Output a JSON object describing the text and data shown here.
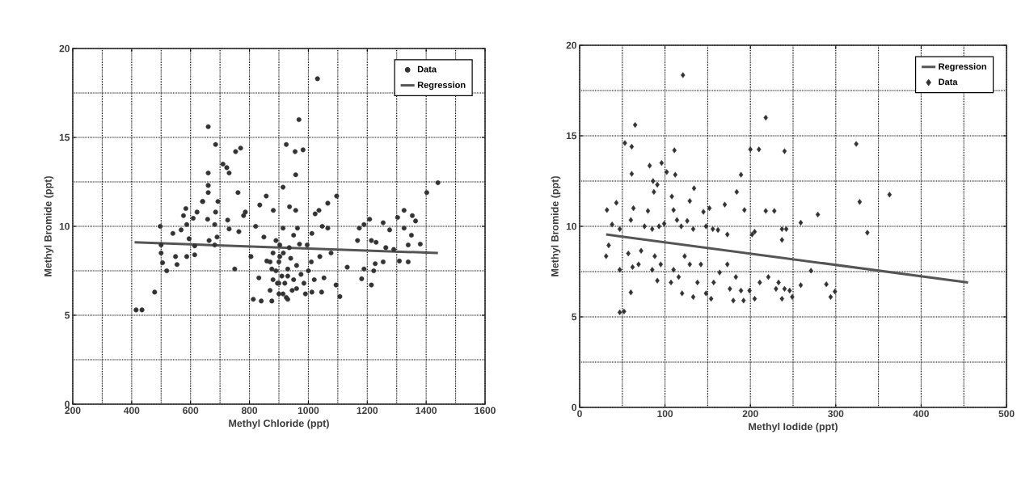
{
  "chart_data": [
    {
      "type": "scatter",
      "xlabel": "Methyl Chloride (ppt)",
      "ylabel": "Methyl Bromide (ppt)",
      "xlim": [
        200,
        1600
      ],
      "ylim": [
        0,
        20
      ],
      "xticks": [
        200,
        400,
        600,
        800,
        1000,
        1200,
        1400,
        1600
      ],
      "yticks": [
        0,
        5,
        10,
        15,
        20
      ],
      "grid": true,
      "legend": "top right",
      "series": [
        {
          "name": "Data",
          "marker": "circle",
          "color": "#333333",
          "x": [
            660,
            685,
            753,
            770,
            710,
            723,
            731,
            660,
            660,
            660,
            761,
            857,
            641,
            693,
            835,
            1031,
            968,
            925,
            955,
            982,
            957,
            914,
            1440,
            1402,
            1096,
            1066,
            1036,
            1023,
            936,
            957,
            1325,
            1353,
            1364,
            1303,
            1254,
            1208,
            1189,
            1173,
            1276,
            1325,
            1350,
            1380,
            1339,
            1290,
            1263,
            1230,
            1214,
            1167,
            1227,
            1222,
            1254,
            1309,
            1339,
            1189,
            1181,
            1214,
            1132,
            1047,
            1066,
            1012,
            963,
            996,
            1039,
            1077,
            1053,
            1094,
            1107,
            1012,
            990,
            1045,
            930,
            415,
            435,
            478,
            497,
            500,
            500,
            505,
            519,
            549,
            554,
            540,
            568,
            587,
            576,
            584,
            595,
            614,
            614,
            587,
            609,
            622,
            641,
            658,
            685,
            682,
            663,
            682,
            690,
            726,
            731,
            764,
            750,
            786,
            780,
            805,
            821,
            849,
            881,
            813,
            840,
            876,
            832,
            859,
            876,
            895,
            914,
            914,
            903,
            903,
            880,
            890,
            900,
            910,
            920,
            930,
            940,
            950,
            960,
            870,
            900,
            925,
            945,
            880,
            935,
            960,
            975,
            985,
            1000,
            1010,
            1020,
            970,
            950,
            890,
            870,
            900,
            915,
            930
          ],
          "values": [
            12.3,
            14.6,
            14.2,
            14.4,
            13.5,
            13.3,
            13.0,
            13.0,
            11.9,
            15.6,
            11.9,
            11.7,
            11.4,
            11.4,
            11.2,
            18.3,
            16.0,
            14.6,
            14.2,
            14.3,
            12.9,
            12.2,
            12.45,
            11.9,
            11.7,
            11.3,
            10.9,
            10.7,
            11.1,
            10.9,
            10.9,
            10.6,
            10.3,
            10.5,
            10.2,
            10.4,
            10.1,
            9.9,
            9.8,
            9.9,
            9.5,
            9.0,
            8.95,
            8.7,
            8.8,
            9.1,
            9.2,
            9.2,
            7.9,
            7.5,
            8.0,
            8.05,
            8.0,
            7.6,
            7.05,
            6.7,
            7.7,
            10.0,
            9.9,
            9.6,
            9.9,
            8.95,
            8.3,
            8.5,
            7.1,
            6.7,
            6.05,
            6.3,
            6.2,
            6.3,
            5.9,
            5.3,
            5.3,
            6.3,
            10.0,
            8.95,
            8.5,
            7.95,
            7.5,
            8.3,
            7.85,
            9.6,
            9.8,
            10.1,
            10.6,
            11.0,
            9.3,
            8.9,
            8.4,
            8.3,
            10.45,
            10.8,
            11.4,
            10.4,
            10.8,
            10.1,
            9.2,
            8.95,
            9.4,
            10.35,
            9.85,
            9.7,
            7.6,
            10.8,
            10.6,
            8.3,
            10.0,
            9.4,
            10.9,
            5.9,
            5.8,
            5.8,
            7.1,
            8.05,
            7.6,
            6.8,
            6.2,
            9.9,
            8.95,
            8.3,
            7.0,
            7.5,
            8.0,
            7.2,
            6.8,
            7.6,
            8.2,
            7.0,
            6.5,
            6.4,
            6.2,
            6.0,
            6.4,
            8.5,
            8.8,
            7.8,
            7.3,
            6.8,
            7.5,
            8.0,
            7.0,
            9.0,
            9.5,
            9.2,
            8.0,
            6.8,
            8.5,
            7.2
          ]
        },
        {
          "name": "Regression",
          "type": "line",
          "marker": "none",
          "color": "#555555",
          "x": [
            410,
            1440
          ],
          "values": [
            9.1,
            8.5
          ]
        }
      ]
    },
    {
      "type": "scatter",
      "xlabel": "Methyl Iodide (ppt)",
      "ylabel": "Methyl Bromide (ppt)",
      "xlim": [
        0,
        500
      ],
      "ylim": [
        0,
        20
      ],
      "xticks": [
        0,
        100,
        200,
        300,
        400,
        500
      ],
      "yticks": [
        0,
        5,
        10,
        15,
        20
      ],
      "grid": true,
      "legend": "top right",
      "series": [
        {
          "name": "Regression",
          "type": "line",
          "marker": "none",
          "color": "#555555",
          "x": [
            31,
            455
          ],
          "values": [
            9.55,
            6.9
          ]
        },
        {
          "name": "Data",
          "marker": "diamond",
          "color": "#333333",
          "x": [
            121,
            65,
            218,
            53,
            61,
            111,
            200,
            210,
            240,
            82,
            96,
            102,
            112,
            61,
            189,
            86,
            91,
            87,
            134,
            184,
            108,
            129,
            170,
            32,
            43,
            63,
            80,
            110,
            145,
            152,
            193,
            218,
            228,
            38,
            47,
            60,
            76,
            85,
            93,
            99,
            114,
            119,
            126,
            133,
            148,
            156,
            162,
            173,
            202,
            205,
            237,
            242,
            237,
            31,
            34,
            47,
            57,
            62,
            69,
            72,
            88,
            85,
            91,
            95,
            110,
            107,
            116,
            123,
            129,
            120,
            133,
            138,
            142,
            148,
            154,
            157,
            164,
            173,
            176,
            183,
            189,
            180,
            192,
            205,
            199,
            211,
            221,
            230,
            237,
            246,
            60,
            47,
            52,
            324,
            363,
            328,
            279,
            259,
            337,
            271,
            259,
            249,
            289,
            299,
            294,
            233,
            240
          ],
          "values": [
            18.35,
            15.6,
            16.0,
            14.6,
            14.4,
            14.2,
            14.25,
            14.25,
            14.15,
            13.35,
            13.5,
            13.0,
            12.85,
            12.9,
            12.85,
            12.5,
            12.3,
            11.9,
            12.1,
            11.9,
            11.65,
            11.4,
            11.2,
            10.9,
            11.3,
            11.0,
            10.85,
            10.9,
            10.8,
            11.0,
            10.9,
            10.85,
            10.85,
            10.1,
            9.85,
            10.35,
            10.0,
            9.85,
            10.0,
            10.15,
            10.35,
            10.0,
            10.3,
            9.85,
            10.0,
            9.85,
            9.8,
            9.55,
            9.55,
            9.7,
            9.85,
            9.85,
            9.25,
            8.35,
            8.95,
            7.6,
            8.5,
            7.75,
            7.9,
            8.65,
            8.35,
            7.6,
            7.0,
            7.9,
            7.6,
            6.9,
            7.2,
            8.35,
            7.9,
            6.3,
            6.1,
            6.9,
            7.9,
            6.3,
            6.0,
            6.9,
            7.45,
            7.9,
            6.55,
            7.2,
            6.45,
            5.9,
            5.9,
            6.0,
            6.45,
            6.9,
            7.2,
            6.55,
            6.0,
            6.45,
            6.35,
            5.25,
            5.3,
            14.55,
            11.75,
            11.35,
            10.65,
            10.2,
            9.65,
            7.55,
            6.75,
            6.1,
            6.8,
            6.4,
            6.1,
            6.9,
            6.55
          ]
        }
      ]
    }
  ]
}
